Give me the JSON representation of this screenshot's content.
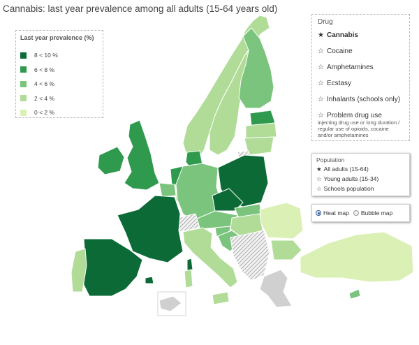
{
  "title": "Cannabis: last year prevalence among all adults (15-64 years old)",
  "legend": {
    "title": "Last year prevalence (%)",
    "items": [
      {
        "label": "8 < 10 %",
        "color": "#0b6a35"
      },
      {
        "label": "6 < 8 %",
        "color": "#2f9a4e"
      },
      {
        "label": "4 < 6 %",
        "color": "#7bc47d"
      },
      {
        "label": "2 < 4 %",
        "color": "#b0dc98"
      },
      {
        "label": "0 < 2 %",
        "color": "#daf0b4"
      }
    ]
  },
  "drug_panel": {
    "title": "Drug",
    "items": [
      {
        "label": "Cannabis",
        "selected": true
      },
      {
        "label": "Cocaine",
        "selected": false
      },
      {
        "label": "Amphetamines",
        "selected": false
      },
      {
        "label": "Ecstasy",
        "selected": false
      },
      {
        "label": "Inhalants (schools only)",
        "selected": false
      },
      {
        "label": "Problem drug use",
        "selected": false
      }
    ],
    "note": "injecting drug use or long duration / regular use of opioids, cocaine and/or amphetamines"
  },
  "population_panel": {
    "title": "Population",
    "items": [
      {
        "label": "All adults (15-64)",
        "selected": true
      },
      {
        "label": "Young adults (15-34)",
        "selected": false
      },
      {
        "label": "Schools population",
        "selected": false
      }
    ]
  },
  "map_mode": {
    "heat_label": "Heat map",
    "bubble_label": "Bubble map",
    "selected": "heat"
  },
  "colors": {
    "no_data": "#d0d0d0",
    "hatched_stroke": "#999999",
    "border": "#ffffff"
  }
}
